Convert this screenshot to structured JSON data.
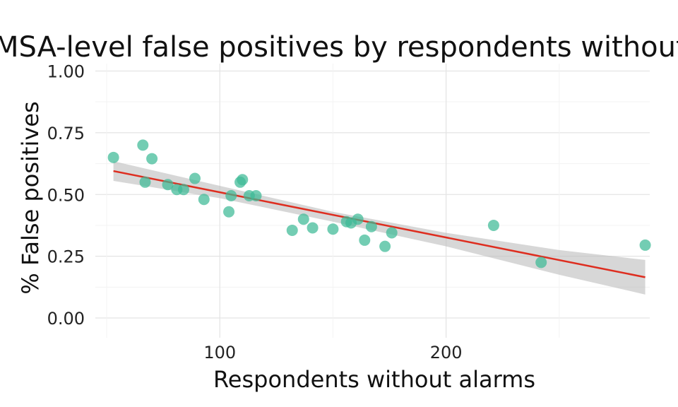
{
  "chart_data": {
    "type": "scatter",
    "title": "MSA-level false positives by respondents without alarms",
    "xlabel": "Respondents without alarms",
    "ylabel": "% False positives",
    "xlim": [
      45,
      290
    ],
    "ylim": [
      -0.08,
      1.03
    ],
    "x_ticks": [
      {
        "value": 100,
        "label": "100"
      },
      {
        "value": 200,
        "label": "200"
      }
    ],
    "y_ticks": [
      {
        "value": 0,
        "label": "0.00"
      },
      {
        "value": 0.25,
        "label": "0.25"
      },
      {
        "value": 0.5,
        "label": "0.50"
      },
      {
        "value": 0.75,
        "label": "0.75"
      },
      {
        "value": 1,
        "label": "1.00"
      }
    ],
    "grid": true,
    "point_color": "#3dba96",
    "line_color": "#de2d1f",
    "band_color": "#bdbdbd",
    "points": [
      {
        "x": 53,
        "y": 0.65
      },
      {
        "x": 66,
        "y": 0.7
      },
      {
        "x": 67,
        "y": 0.55
      },
      {
        "x": 70,
        "y": 0.645
      },
      {
        "x": 77,
        "y": 0.54
      },
      {
        "x": 81,
        "y": 0.52
      },
      {
        "x": 84,
        "y": 0.52
      },
      {
        "x": 89,
        "y": 0.565
      },
      {
        "x": 93,
        "y": 0.48
      },
      {
        "x": 104,
        "y": 0.43
      },
      {
        "x": 105,
        "y": 0.495
      },
      {
        "x": 109,
        "y": 0.55
      },
      {
        "x": 110,
        "y": 0.56
      },
      {
        "x": 113,
        "y": 0.495
      },
      {
        "x": 116,
        "y": 0.495
      },
      {
        "x": 132,
        "y": 0.355
      },
      {
        "x": 137,
        "y": 0.4
      },
      {
        "x": 141,
        "y": 0.365
      },
      {
        "x": 150,
        "y": 0.36
      },
      {
        "x": 156,
        "y": 0.39
      },
      {
        "x": 158,
        "y": 0.385
      },
      {
        "x": 161,
        "y": 0.4
      },
      {
        "x": 164,
        "y": 0.315
      },
      {
        "x": 167,
        "y": 0.37
      },
      {
        "x": 173,
        "y": 0.29
      },
      {
        "x": 176,
        "y": 0.345
      },
      {
        "x": 221,
        "y": 0.375
      },
      {
        "x": 242,
        "y": 0.225
      },
      {
        "x": 288,
        "y": 0.295
      }
    ],
    "fit": {
      "x0": 53,
      "y0": 0.595,
      "x1": 288,
      "y1": 0.165
    },
    "band": [
      {
        "x": 53,
        "lo": 0.555,
        "hi": 0.635
      },
      {
        "x": 100,
        "lo": 0.485,
        "hi": 0.535
      },
      {
        "x": 150,
        "lo": 0.39,
        "hi": 0.43
      },
      {
        "x": 200,
        "lo": 0.29,
        "hi": 0.345
      },
      {
        "x": 250,
        "lo": 0.175,
        "hi": 0.275
      },
      {
        "x": 288,
        "lo": 0.095,
        "hi": 0.235
      }
    ]
  }
}
